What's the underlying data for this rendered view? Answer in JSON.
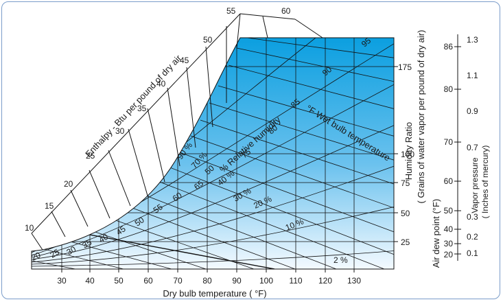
{
  "labels": {
    "dry_bulb": "Dry bulb temperature ( °F)",
    "enthalpy": "Enthalpy  - Btu per pound of dry air",
    "humidity_title": "Humidity Ratio",
    "humidity_sub": "( Grains of water vapor per pound of dry air)",
    "dew_point": "Air dew point (°F)",
    "vapor_title": "Vapor pressure",
    "vapor_sub": "( Inches of mercury)",
    "wet_bulb": "°F Wet bulb temperature",
    "rh": "% Relative humidity"
  },
  "dry_bulb_ticks": [
    "30",
    "40",
    "50",
    "60",
    "70",
    "80",
    "90",
    "100",
    "110",
    "120",
    "130"
  ],
  "enthalpy_ticks": [
    "10",
    "15",
    "20",
    "25",
    "30",
    "35",
    "40",
    "45",
    "50",
    "55",
    "60"
  ],
  "humidity_ticks": [
    "25",
    "50",
    "75",
    "100",
    "175"
  ],
  "dew_point_ticks": [
    "20",
    "30",
    "40",
    "50",
    "60",
    "70",
    "80",
    "86"
  ],
  "vapor_ticks": [
    "0.1",
    "0.2",
    "0.3",
    "0.7",
    "0.9",
    "1.1",
    "1.3"
  ],
  "wet_bulb_ticks": [
    "20",
    "25",
    "30",
    "35",
    "40",
    "45",
    "50",
    "55",
    "60",
    "65",
    "75",
    "80",
    "85",
    "90",
    "95"
  ],
  "rh_ticks": [
    "2 %",
    "10 %",
    "20 %",
    "30 %",
    "40 %",
    "50",
    "70 %",
    "90 %"
  ],
  "colors": {
    "deep": "#0b9fe0",
    "light": "#f4faff",
    "frame": "#7a9cc9"
  }
}
